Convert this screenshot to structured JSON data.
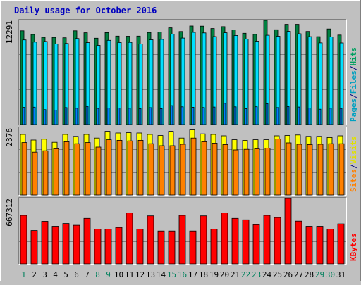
{
  "chart_data": {
    "type": "bar",
    "title": "Daily usage for October 2016",
    "categories": [
      "1",
      "2",
      "3",
      "4",
      "5",
      "6",
      "7",
      "8",
      "9",
      "10",
      "11",
      "12",
      "13",
      "14",
      "15",
      "16",
      "17",
      "18",
      "19",
      "20",
      "21",
      "22",
      "23",
      "24",
      "25",
      "26",
      "27",
      "28",
      "29",
      "30",
      "31"
    ],
    "weekend_days": [
      "1",
      "8",
      "9",
      "15",
      "16",
      "22",
      "23",
      "29",
      "30"
    ],
    "panels": [
      {
        "name": "requests",
        "ymax": 12291,
        "ylabel_parts": [
          {
            "text": "Pages",
            "color": "#00A0C0"
          },
          {
            "text": "/",
            "color": "#000080"
          },
          {
            "text": "Files",
            "color": "#00A0C0"
          },
          {
            "text": "/",
            "color": "#000080"
          },
          {
            "text": "Hits",
            "color": "#00A060"
          }
        ],
        "series": [
          {
            "name": "Hits",
            "color": "#008040",
            "values": [
              11060,
              10630,
              10290,
              10280,
              10240,
              11060,
              10830,
              10190,
              10850,
              10440,
              10420,
              10440,
              10860,
              10920,
              11410,
              10980,
              11630,
              11610,
              11330,
              11550,
              11180,
              10770,
              10650,
              12291,
              11190,
              11830,
              11830,
              10990,
              10370,
              11280,
              10560
            ]
          },
          {
            "name": "Files",
            "color": "#00E0FF",
            "values": [
              9990,
              9730,
              9810,
              9500,
              9570,
              10150,
              9670,
              9340,
              9940,
              9680,
              9700,
              9500,
              10010,
              10060,
              10670,
              10210,
              10880,
              10810,
              10380,
              10830,
              10510,
              10100,
              9840,
              10540,
              10420,
              11000,
              10710,
              10370,
              9640,
              10330,
              9630
            ]
          },
          {
            "name": "Pages",
            "color": "#0080FF",
            "values": [
              2030,
              2050,
              1760,
              1710,
              2000,
              1930,
              2140,
              1910,
              1960,
              1960,
              1930,
              1870,
              1990,
              1880,
              2230,
              2090,
              2040,
              2010,
              2070,
              2510,
              2090,
              1880,
              2100,
              2470,
              2000,
              2120,
              2070,
              1960,
              1810,
              1930,
              1900
            ]
          }
        ]
      },
      {
        "name": "visitors",
        "ymax": 2376,
        "ylabel_parts": [
          {
            "text": "Sites",
            "color": "#FF8000"
          },
          {
            "text": "/",
            "color": "#000080"
          },
          {
            "text": "Visits",
            "color": "#E0E000"
          }
        ],
        "series": [
          {
            "name": "Visits",
            "color": "#FFFF00",
            "values": [
              2150,
              1950,
              1980,
              1870,
              2150,
              2080,
              2150,
              2020,
              2260,
              2200,
              2210,
              2200,
              2150,
              2110,
              2260,
              2020,
              2310,
              2170,
              2150,
              2100,
              1960,
              1940,
              1960,
              1960,
              2100,
              2110,
              2130,
              2080,
              2080,
              2040,
              2100
            ]
          },
          {
            "name": "Sites",
            "color": "#FF8000",
            "values": [
              1860,
              1520,
              1570,
              1640,
              1890,
              1820,
              1860,
              1700,
              1960,
              1940,
              1920,
              1940,
              1820,
              1750,
              1750,
              1800,
              2020,
              1890,
              1840,
              1790,
              1600,
              1620,
              1640,
              1660,
              1990,
              1850,
              1800,
              1790,
              1800,
              1820,
              1820
            ]
          }
        ]
      },
      {
        "name": "traffic",
        "ymax": 667312,
        "ylabel_parts": [
          {
            "text": "KBytes",
            "color": "#FF0000"
          }
        ],
        "series": [
          {
            "name": "KBytes",
            "color": "#FF0000",
            "values": [
              495000,
              340000,
              434000,
              384000,
              412000,
              394000,
              464000,
              355000,
              355000,
              372000,
              521000,
              355000,
              490000,
              336000,
              336000,
              495000,
              336000,
              490000,
              355000,
              521000,
              464000,
              450000,
              400000,
              495000,
              473000,
              667312,
              436000,
              384000,
              384000,
              355000,
              408000
            ]
          }
        ]
      }
    ]
  }
}
